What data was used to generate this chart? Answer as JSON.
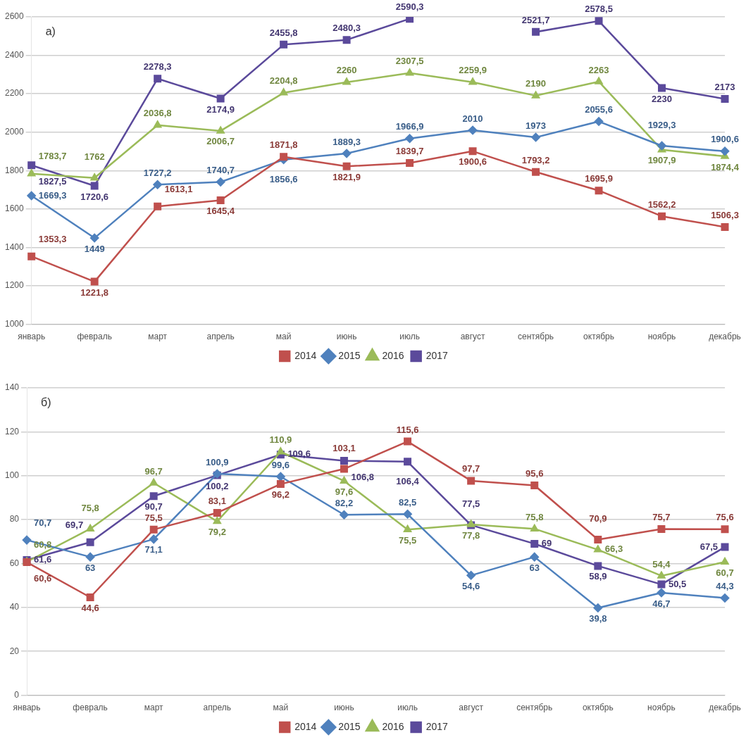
{
  "chart_data": [
    {
      "type": "line",
      "annotations": [
        "а)"
      ],
      "categories": [
        "январь",
        "февраль",
        "март",
        "апрель",
        "май",
        "июнь",
        "июль",
        "август",
        "сентябрь",
        "октябрь",
        "ноябрь",
        "декабрь"
      ],
      "series": [
        {
          "name": "2014",
          "color": "#c0504d",
          "marker": "square",
          "values": [
            1353.3,
            1221.8,
            1613.1,
            1645.4,
            1871.8,
            1821.9,
            1839.7,
            1900.6,
            1793.2,
            1695.9,
            1562.2,
            1506.3
          ],
          "value_labels": [
            "1353,3",
            "1221,8",
            "1613,1",
            "1645,4",
            "1871,8",
            "1821,9",
            "1839,7",
            "1900,6",
            "1793,2",
            "1695,9",
            "1562,2",
            "1506,3"
          ]
        },
        {
          "name": "2015",
          "color": "#4f81bd",
          "marker": "diamond",
          "values": [
            1669.3,
            1449,
            1727.2,
            1740.7,
            1856.6,
            1889.3,
            1966.9,
            2010,
            1973,
            2055.6,
            1929.3,
            1900.6
          ],
          "value_labels": [
            "1669,3",
            "1449",
            "1727,2",
            "1740,7",
            "1856,6",
            "1889,3",
            "1966,9",
            "2010",
            "1973",
            "2055,6",
            "1929,3",
            "1900,6"
          ]
        },
        {
          "name": "2016",
          "color": "#9bbb59",
          "marker": "triangle",
          "values": [
            1783.7,
            1762,
            2036.8,
            2006.7,
            2204.8,
            2260,
            2307.5,
            2259.9,
            2190,
            2263,
            1907.9,
            1874.4
          ],
          "value_labels": [
            "1783,7",
            "1762",
            "2036,8",
            "2006,7",
            "2204,8",
            "2260",
            "2307,5",
            "2259,9",
            "2190",
            "2263",
            "1907,9",
            "1874,4"
          ]
        },
        {
          "name": "2017",
          "color": "#5b4a9b",
          "marker": "square",
          "values": [
            1827.5,
            1720.6,
            2278.3,
            2174.9,
            2455.8,
            2480.3,
            2590.3,
            null,
            2521.7,
            2578.5,
            2230,
            2173
          ],
          "value_labels": [
            "1827,5",
            "1720,6",
            "2278,3",
            "2174,9",
            "2455,8",
            "2480,3",
            "2590,3",
            null,
            "2521,7",
            "2578,5",
            "2230",
            "2173"
          ]
        }
      ],
      "ylim": [
        1000,
        2600
      ],
      "yticks": [
        1000,
        1200,
        1400,
        1600,
        1800,
        2000,
        2200,
        2400,
        2600
      ],
      "grid": "y",
      "legend": "bottom"
    },
    {
      "type": "line",
      "annotations": [
        "б)"
      ],
      "categories": [
        "январь",
        "февраль",
        "март",
        "апрель",
        "май",
        "июнь",
        "июль",
        "август",
        "сентябрь",
        "октябрь",
        "ноябрь",
        "декабрь"
      ],
      "series": [
        {
          "name": "2014",
          "color": "#c0504d",
          "marker": "square",
          "values": [
            60.6,
            44.6,
            75.5,
            83.1,
            96.2,
            103.1,
            115.6,
            97.7,
            95.6,
            70.9,
            75.7,
            75.6
          ],
          "value_labels": [
            "60,6",
            "44,6",
            "75,5",
            "83,1",
            "96,2",
            "103,1",
            "115,6",
            "97,7",
            "95,6",
            "70,9",
            "75,7",
            "75,6"
          ]
        },
        {
          "name": "2015",
          "color": "#4f81bd",
          "marker": "diamond",
          "values": [
            70.7,
            63,
            71.1,
            100.9,
            99.6,
            82.2,
            82.5,
            54.6,
            63,
            39.8,
            46.7,
            44.3
          ],
          "value_labels": [
            "70,7",
            "63",
            "71,1",
            "100,9",
            "99,6",
            "82,2",
            "82,5",
            "54,6",
            "63",
            "39,8",
            "46,7",
            "44,3"
          ]
        },
        {
          "name": "2016",
          "color": "#9bbb59",
          "marker": "triangle",
          "values": [
            60.8,
            75.8,
            96.7,
            79.2,
            110.9,
            97.6,
            75.5,
            77.8,
            75.8,
            66.3,
            54.4,
            60.7
          ],
          "value_labels": [
            "60,8",
            "75,8",
            "96,7",
            "79,2",
            "110,9",
            "97,6",
            "75,5",
            "77,8",
            "75,8",
            "66,3",
            "54,4",
            "60,7"
          ]
        },
        {
          "name": "2017",
          "color": "#5b4a9b",
          "marker": "square",
          "values": [
            61.6,
            69.7,
            90.7,
            100.2,
            109.6,
            106.8,
            106.4,
            77.5,
            69,
            58.9,
            50.5,
            67.5
          ],
          "value_labels": [
            "61,6",
            "69,7",
            "90,7",
            "100,2",
            "109,6",
            "106,8",
            "106,4",
            "77,5",
            "69",
            "58,9",
            "50,5",
            "67,5"
          ]
        }
      ],
      "ylim": [
        0,
        140
      ],
      "yticks": [
        0,
        20,
        40,
        60,
        80,
        100,
        120,
        140
      ],
      "grid": "y",
      "legend": "bottom"
    }
  ]
}
